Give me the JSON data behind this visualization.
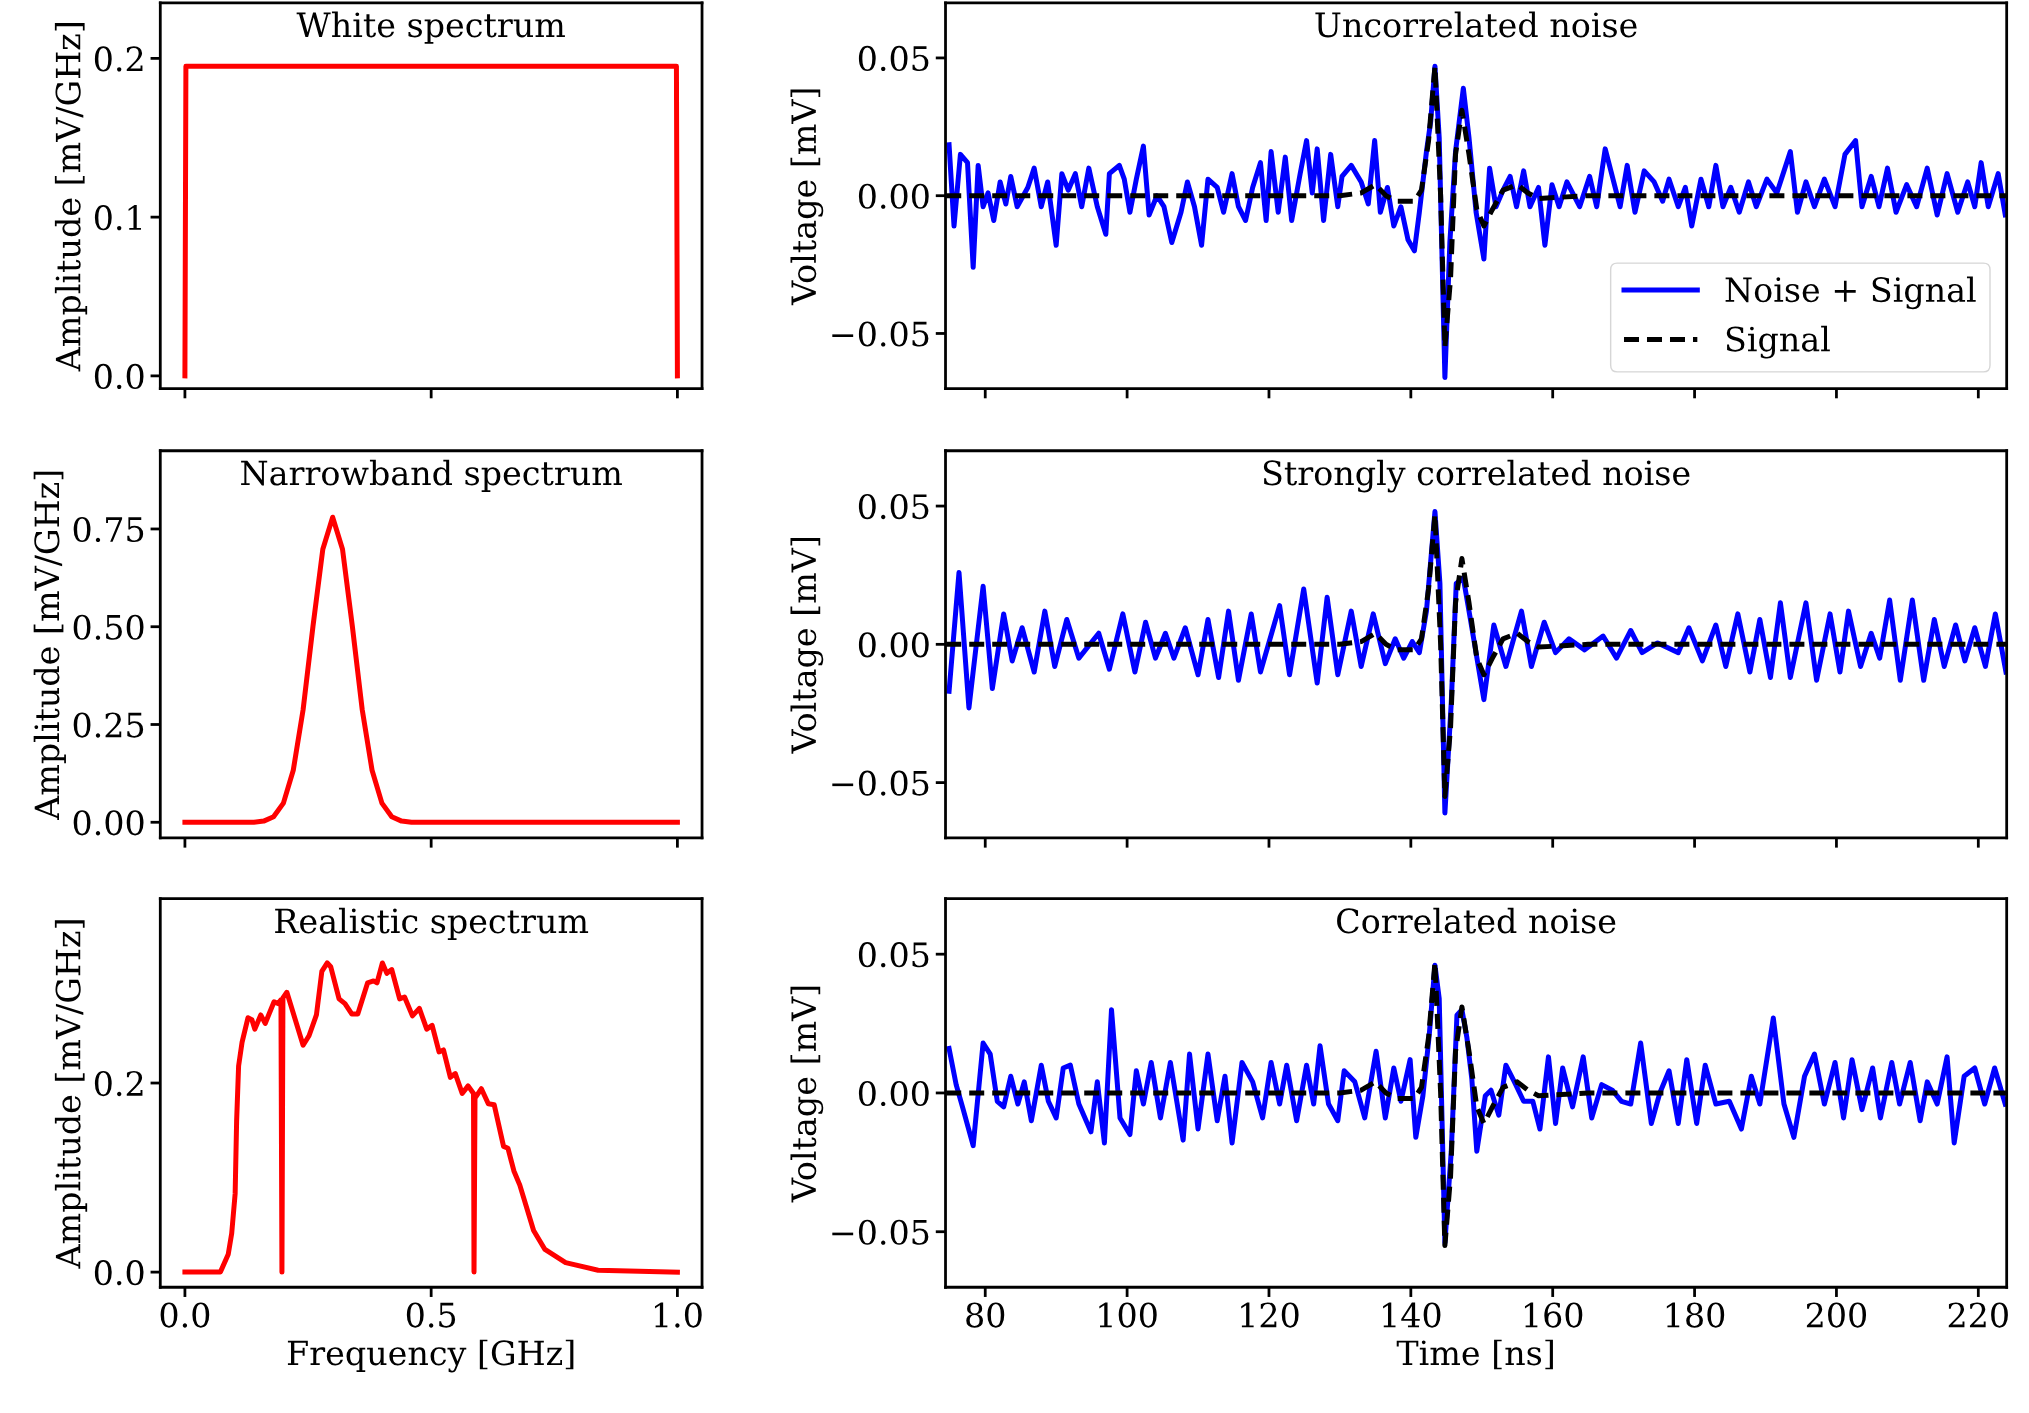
{
  "chart_data": [
    {
      "type": "line",
      "title": "White spectrum",
      "ylabel": "Amplitude [mV/GHz]",
      "xlim": [
        -0.05,
        1.05
      ],
      "ylim": [
        -0.008,
        0.235
      ],
      "xticks": [
        {
          "value": 0,
          "label": null
        },
        {
          "value": 0.5,
          "label": null
        },
        {
          "value": 1,
          "label": null
        }
      ],
      "yticks": [
        {
          "value": 0,
          "label": "0.0"
        },
        {
          "value": 0.1,
          "label": "0.1"
        },
        {
          "value": 0.2,
          "label": "0.2"
        }
      ],
      "tick_labels": "y",
      "grid": false,
      "legend": false,
      "series": [
        {
          "color": "#ff0000",
          "line_style": "solid",
          "x": [
            0,
            0.002,
            0.998,
            1
          ],
          "values": [
            0,
            0.195,
            0.195,
            0
          ]
        }
      ]
    },
    {
      "type": "line",
      "title": "Uncorrelated noise",
      "ylabel": "Voltage [mV]",
      "xlim": [
        74.4,
        224
      ],
      "ylim": [
        -0.07,
        0.07
      ],
      "xticks": [
        80,
        100,
        120,
        140,
        160,
        180,
        200,
        220
      ],
      "yticks": [
        {
          "value": -0.05,
          "label": "−0.05"
        },
        {
          "value": 0,
          "label": "0.00"
        },
        {
          "value": 0.05,
          "label": "0.05"
        }
      ],
      "tick_labels": "y",
      "grid": false,
      "legend": "bottom right",
      "series": [
        {
          "name": "Noise + Signal",
          "color": "#0000ff",
          "line_style": "solid",
          "x": [
            74.9,
            75.6,
            76.5,
            77.5,
            78.3,
            79.0,
            79.7,
            80.4,
            81.2,
            82.1,
            82.9,
            83.6,
            84.5,
            86.0,
            86.9,
            87.9,
            88.8,
            90.0,
            90.8,
            91.7,
            92.7,
            93.6,
            94.6,
            95.8,
            97.0,
            97.5,
            98.9,
            99.6,
            100.4,
            101.3,
            102.3,
            103.1,
            104.2,
            105.2,
            106.3,
            107.6,
            108.5,
            109.5,
            110.5,
            111.4,
            112.7,
            113.6,
            114.8,
            115.7,
            116.7,
            117.7,
            118.8,
            119.6,
            120.3,
            121.3,
            122.3,
            123.2,
            124.4,
            125.3,
            126.1,
            126.8,
            127.7,
            128.7,
            129.7,
            130.3,
            131.6,
            133.0,
            134.0,
            134.9,
            135.7,
            136.7,
            137.6,
            138.6,
            139.6,
            140.5,
            141.2,
            142.2,
            142.8,
            143.4,
            144.0,
            144.8,
            145.5,
            146.3,
            147.4,
            148.2,
            149.2,
            150.3,
            151.1,
            152.0,
            153.0,
            154.0,
            154.9,
            155.9,
            156.8,
            158.0,
            158.9,
            159.9,
            160.9,
            162.0,
            163.8,
            165.2,
            166.2,
            167.4,
            168.4,
            169.5,
            170.5,
            171.6,
            172.9,
            174.3,
            175.5,
            176.4,
            177.7,
            178.7,
            179.6,
            180.9,
            182.0,
            183.0,
            184.0,
            185.1,
            186.3,
            187.6,
            188.7,
            190.2,
            191.6,
            193.5,
            194.5,
            195.7,
            196.9,
            198.3,
            199.8,
            201.2,
            202.7,
            203.6,
            204.9,
            206.0,
            207.2,
            208.4,
            209.9,
            211.3,
            212.8,
            214.2,
            215.6,
            217.1,
            218.5,
            219.5,
            220.4,
            221.4,
            222.8,
            223.8
          ],
          "values": [
            0.0185,
            -0.011,
            0.015,
            0.012,
            -0.026,
            0.011,
            -0.004,
            0.001,
            -0.009,
            0.005,
            -0.003,
            0.007,
            -0.004,
            0.003,
            0.01,
            -0.004,
            0.005,
            -0.018,
            0.008,
            0.002,
            0.008,
            -0.004,
            0.01,
            -0.004,
            -0.014,
            0.008,
            0.011,
            0.006,
            -0.006,
            0.006,
            0.018,
            -0.007,
            0,
            -0.004,
            -0.017,
            -0.006,
            0.005,
            -0.004,
            -0.018,
            0.006,
            0.003,
            -0.006,
            0.008,
            -0.004,
            -0.009,
            0.003,
            0.012,
            -0.009,
            0.016,
            -0.006,
            0.014,
            -0.009,
            0.008,
            0.02,
            0.001,
            0.017,
            -0.009,
            0.015,
            -0.004,
            0.007,
            0.011,
            0.005,
            -0.003,
            0.02,
            -0.006,
            0.003,
            -0.011,
            -0.004,
            -0.016,
            -0.02,
            -0.006,
            0.016,
            0.027,
            0.047,
            0.021,
            -0.066,
            -0.017,
            0.016,
            0.039,
            0.021,
            -0.006,
            -0.023,
            0.01,
            -0.004,
            0.002,
            0.007,
            -0.004,
            0.009,
            -0.004,
            0.003,
            -0.018,
            0.004,
            -0.004,
            0.005,
            -0.004,
            0.007,
            -0.004,
            0.017,
            0.007,
            -0.004,
            0.011,
            -0.006,
            0.009,
            0.005,
            -0.002,
            0.006,
            -0.004,
            0.003,
            -0.011,
            0.006,
            -0.004,
            0.011,
            -0.004,
            0.003,
            -0.006,
            0.005,
            -0.004,
            0.006,
            0.001,
            0.016,
            -0.006,
            0.005,
            -0.004,
            0.006,
            -0.004,
            0.015,
            0.02,
            -0.004,
            0.007,
            -0.004,
            0.01,
            -0.006,
            0.004,
            -0.004,
            0.01,
            -0.007,
            0.008,
            -0.006,
            0.005,
            -0.004,
            0.012,
            -0.004,
            0.008,
            -0.007
          ]
        },
        {
          "name": "Signal",
          "color": "#000000",
          "line_style": "dashed",
          "x": [
            74.5,
            130,
            133,
            135,
            136.5,
            138,
            140.5,
            141.5,
            142.5,
            143.4,
            144.2,
            144.8,
            145.6,
            146.3,
            147.2,
            148.2,
            149.3,
            150.3,
            151.5,
            153,
            155,
            156.5,
            158,
            165,
            224
          ],
          "values": [
            0,
            0,
            0.001,
            0.004,
            0,
            -0.002,
            -0.002,
            0.002,
            0.02,
            0.047,
            0,
            -0.055,
            -0.03,
            0.015,
            0.031,
            0.015,
            -0.005,
            -0.011,
            -0.005,
            0.002,
            0.004,
            0.001,
            -0.001,
            0,
            0
          ]
        }
      ]
    },
    {
      "type": "line",
      "title": "Narrowband spectrum",
      "ylabel": "Amplitude [mV/GHz]",
      "xlim": [
        -0.05,
        1.05
      ],
      "ylim": [
        -0.04,
        0.95
      ],
      "xticks": [
        {
          "value": 0,
          "label": null
        },
        {
          "value": 0.5,
          "label": null
        },
        {
          "value": 1,
          "label": null
        }
      ],
      "yticks": [
        {
          "value": 0,
          "label": "0.00"
        },
        {
          "value": 0.25,
          "label": "0.25"
        },
        {
          "value": 0.5,
          "label": "0.50"
        },
        {
          "value": 0.75,
          "label": "0.75"
        }
      ],
      "tick_labels": "y",
      "grid": false,
      "legend": false,
      "series": [
        {
          "color": "#ff0000",
          "line_style": "solid",
          "x": [
            0,
            0.1,
            0.14,
            0.16,
            0.18,
            0.2,
            0.22,
            0.24,
            0.26,
            0.28,
            0.3,
            0.32,
            0.34,
            0.36,
            0.38,
            0.4,
            0.42,
            0.44,
            0.46,
            0.5,
            0.7,
            1.0
          ],
          "values": [
            0,
            0,
            0,
            0.003,
            0.014,
            0.049,
            0.133,
            0.288,
            0.501,
            0.698,
            0.78,
            0.698,
            0.501,
            0.288,
            0.133,
            0.049,
            0.014,
            0.003,
            0,
            0,
            0,
            0
          ]
        }
      ]
    },
    {
      "type": "line",
      "title": "Strongly correlated noise",
      "ylabel": "Voltage [mV]",
      "xlim": [
        74.4,
        224
      ],
      "ylim": [
        -0.07,
        0.07
      ],
      "xticks": [
        80,
        100,
        120,
        140,
        160,
        180,
        200,
        220
      ],
      "yticks": [
        {
          "value": -0.05,
          "label": "−0.05"
        },
        {
          "value": 0,
          "label": "0.00"
        },
        {
          "value": 0.05,
          "label": "0.05"
        }
      ],
      "tick_labels": "y",
      "grid": false,
      "legend": false,
      "series": [
        {
          "color": "#0000ff",
          "line_style": "solid",
          "x": [
            74.9,
            76.3,
            77.7,
            79.7,
            81.0,
            82.6,
            83.8,
            85.2,
            86.9,
            88.4,
            89.8,
            91.5,
            93.2,
            96.0,
            97.5,
            99.4,
            101.1,
            102.6,
            104.0,
            105.4,
            106.6,
            108.2,
            110.0,
            111.4,
            112.9,
            114.3,
            115.7,
            117.5,
            118.8,
            121.5,
            122.9,
            124.9,
            126.8,
            128.2,
            129.7,
            131.6,
            133.0,
            134.7,
            136.4,
            137.8,
            139.0,
            140.2,
            141.2,
            142.2,
            143.4,
            144.1,
            144.8,
            145.7,
            146.4,
            147.4,
            148.4,
            150.3,
            151.7,
            153.4,
            155.6,
            157.0,
            158.8,
            160.4,
            162.3,
            164.5,
            167.1,
            169.0,
            171.0,
            172.6,
            174.8,
            177.7,
            179.2,
            181.1,
            183.0,
            184.4,
            186.1,
            187.8,
            189.2,
            190.7,
            192.1,
            193.5,
            195.7,
            197.2,
            199.1,
            200.5,
            201.7,
            203.4,
            204.9,
            206.1,
            207.5,
            209.0,
            210.7,
            212.3,
            213.8,
            215.2,
            216.8,
            218.1,
            219.5,
            221.0,
            222.4,
            223.9
          ],
          "values": [
            -0.017,
            0.026,
            -0.023,
            0.021,
            -0.016,
            0.011,
            -0.006,
            0.006,
            -0.01,
            0.012,
            -0.008,
            0.009,
            -0.005,
            0.004,
            -0.009,
            0.011,
            -0.01,
            0.008,
            -0.005,
            0.004,
            -0.005,
            0.006,
            -0.011,
            0.009,
            -0.012,
            0.012,
            -0.013,
            0.011,
            -0.01,
            0.014,
            -0.011,
            0.02,
            -0.014,
            0.017,
            -0.011,
            0.012,
            -0.008,
            0.011,
            -0.007,
            0.002,
            -0.005,
            0.001,
            -0.003,
            0.012,
            0.048,
            0.022,
            -0.061,
            -0.021,
            0.022,
            0.024,
            0.009,
            -0.02,
            0.007,
            -0.008,
            0.012,
            -0.008,
            0.008,
            -0.003,
            0.002,
            -0.002,
            0.003,
            -0.005,
            0.005,
            -0.003,
            0.0005,
            -0.003,
            0.006,
            -0.006,
            0.007,
            -0.008,
            0.011,
            -0.01,
            0.009,
            -0.012,
            0.015,
            -0.012,
            0.015,
            -0.013,
            0.011,
            -0.01,
            0.012,
            -0.008,
            0.004,
            -0.005,
            0.016,
            -0.013,
            0.016,
            -0.013,
            0.009,
            -0.008,
            0.007,
            -0.006,
            0.006,
            -0.008,
            0.011,
            -0.01
          ]
        },
        {
          "color": "#000000",
          "line_style": "dashed",
          "x": [
            74.5,
            130,
            133,
            135,
            136.5,
            138,
            140.5,
            141.5,
            142.5,
            143.4,
            144.2,
            144.8,
            145.6,
            146.3,
            147.2,
            148.2,
            149.3,
            150.3,
            151.5,
            153,
            155,
            156.5,
            158,
            165,
            224
          ],
          "values": [
            0,
            0,
            0.001,
            0.004,
            0,
            -0.002,
            -0.002,
            0.002,
            0.02,
            0.047,
            0,
            -0.055,
            -0.03,
            0.015,
            0.031,
            0.015,
            -0.005,
            -0.011,
            -0.005,
            0.002,
            0.004,
            0.001,
            -0.001,
            0,
            0
          ]
        }
      ]
    },
    {
      "type": "line",
      "title": "Realistic spectrum",
      "xlabel": "Frequency [GHz]",
      "ylabel": "Amplitude [mV/GHz]",
      "xlim": [
        -0.05,
        1.05
      ],
      "ylim": [
        -0.016,
        0.395
      ],
      "xticks": [
        {
          "value": 0,
          "label": "0.0"
        },
        {
          "value": 0.5,
          "label": "0.5"
        },
        {
          "value": 1,
          "label": "1.0"
        }
      ],
      "yticks": [
        {
          "value": 0,
          "label": "0.0"
        },
        {
          "value": 0.2,
          "label": "0.2"
        }
      ],
      "grid": false,
      "legend": false,
      "series": [
        {
          "color": "#ff0000",
          "line_style": "solid",
          "x": [
            0,
            0.072,
            0.088,
            0.095,
            0.102,
            0.105,
            0.109,
            0.116,
            0.128,
            0.136,
            0.142,
            0.154,
            0.163,
            0.181,
            0.189,
            0.195,
            0.197,
            0.199,
            0.207,
            0.24,
            0.252,
            0.267,
            0.278,
            0.289,
            0.296,
            0.313,
            0.325,
            0.339,
            0.351,
            0.371,
            0.383,
            0.39,
            0.401,
            0.41,
            0.42,
            0.436,
            0.446,
            0.462,
            0.476,
            0.491,
            0.502,
            0.516,
            0.525,
            0.539,
            0.549,
            0.563,
            0.575,
            0.586,
            0.587,
            0.589,
            0.602,
            0.616,
            0.628,
            0.647,
            0.656,
            0.668,
            0.68,
            0.708,
            0.731,
            0.773,
            0.839,
            1.0
          ],
          "values": [
            0,
            0,
            0.019,
            0.041,
            0.083,
            0.16,
            0.218,
            0.243,
            0.269,
            0.267,
            0.257,
            0.272,
            0.263,
            0.286,
            0.284,
            0.288,
            0,
            0.29,
            0.296,
            0.24,
            0.25,
            0.272,
            0.318,
            0.327,
            0.323,
            0.289,
            0.284,
            0.273,
            0.273,
            0.306,
            0.308,
            0.306,
            0.327,
            0.316,
            0.32,
            0.289,
            0.291,
            0.271,
            0.279,
            0.257,
            0.261,
            0.233,
            0.235,
            0.206,
            0.21,
            0.189,
            0.197,
            0.189,
            0,
            0.184,
            0.194,
            0.178,
            0.177,
            0.133,
            0.131,
            0.107,
            0.092,
            0.044,
            0.024,
            0.01,
            0.002,
            0
          ]
        }
      ]
    },
    {
      "type": "line",
      "title": "Correlated noise",
      "xlabel": "Time [ns]",
      "ylabel": "Voltage [mV]",
      "xlim": [
        74.4,
        224
      ],
      "ylim": [
        -0.07,
        0.07
      ],
      "xticks": [
        80,
        100,
        120,
        140,
        160,
        180,
        200,
        220
      ],
      "yticks": [
        {
          "value": -0.05,
          "label": "−0.05"
        },
        {
          "value": 0,
          "label": "0.00"
        },
        {
          "value": 0.05,
          "label": "0.05"
        }
      ],
      "grid": false,
      "legend": false,
      "series": [
        {
          "color": "#0000ff",
          "line_style": "solid",
          "x": [
            74.9,
            75.9,
            76.9,
            78.3,
            79.7,
            80.7,
            81.7,
            82.6,
            83.6,
            84.6,
            85.5,
            86.5,
            87.9,
            88.9,
            90.0,
            91.0,
            92.0,
            93.2,
            94.9,
            95.8,
            96.8,
            97.8,
            99.0,
            100.4,
            101.3,
            102.3,
            103.4,
            104.7,
            106.1,
            107.9,
            108.8,
            110.0,
            111.4,
            112.7,
            113.8,
            114.8,
            116.2,
            117.7,
            119.1,
            120.3,
            121.5,
            122.5,
            123.9,
            125.3,
            126.3,
            127.2,
            128.4,
            129.7,
            130.6,
            132.1,
            133.5,
            135.1,
            136.4,
            137.6,
            138.6,
            139.9,
            140.7,
            141.7,
            142.6,
            143.4,
            144.0,
            144.8,
            145.7,
            146.5,
            147.2,
            147.9,
            148.6,
            149.3,
            150.5,
            151.3,
            152.4,
            153.4,
            154.6,
            155.9,
            157.2,
            158.2,
            159.4,
            160.4,
            161.4,
            162.8,
            164.3,
            165.5,
            166.9,
            168.4,
            169.7,
            171.0,
            172.4,
            173.9,
            175.1,
            176.4,
            177.7,
            178.9,
            180.3,
            181.5,
            183.0,
            184.9,
            186.6,
            188.0,
            189.2,
            191.1,
            192.6,
            194.0,
            195.5,
            196.9,
            198.3,
            199.8,
            201.0,
            202.2,
            203.6,
            205.1,
            206.2,
            207.8,
            208.9,
            210.4,
            211.8,
            212.8,
            214.2,
            215.6,
            216.6,
            218.0,
            219.5,
            220.9,
            222.3,
            223.8
          ],
          "values": [
            0.016,
            0.003,
            -0.006,
            -0.019,
            0.018,
            0.014,
            -0.003,
            -0.005,
            0.006,
            -0.004,
            0.004,
            -0.01,
            0.01,
            -0.003,
            -0.009,
            0.009,
            0.01,
            -0.004,
            -0.014,
            0.004,
            -0.018,
            0.03,
            -0.009,
            -0.015,
            0.008,
            -0.004,
            0.011,
            -0.009,
            0.011,
            -0.017,
            0.014,
            -0.013,
            0.014,
            -0.01,
            0.006,
            -0.018,
            0.011,
            0.004,
            -0.009,
            0.011,
            -0.004,
            0.01,
            -0.01,
            0.01,
            -0.004,
            0.017,
            -0.004,
            -0.01,
            0.008,
            0.004,
            -0.009,
            0.015,
            -0.009,
            0.009,
            -0.003,
            0.012,
            -0.016,
            -0.001,
            0.021,
            0.046,
            0.034,
            -0.054,
            -0.021,
            0.028,
            0.03,
            0.02,
            0.005,
            -0.021,
            -0.001,
            0.001,
            -0.008,
            0.01,
            0.004,
            -0.003,
            -0.003,
            -0.013,
            0.013,
            -0.011,
            0.009,
            -0.005,
            0.013,
            -0.009,
            0.003,
            0.001,
            -0.003,
            -0.004,
            0.018,
            -0.011,
            0,
            0.008,
            -0.011,
            0.012,
            -0.011,
            0.01,
            -0.004,
            -0.003,
            -0.013,
            0.006,
            -0.004,
            0.027,
            -0.004,
            -0.016,
            0.006,
            0.014,
            -0.004,
            0.011,
            -0.009,
            0.012,
            -0.006,
            0.009,
            -0.009,
            0.011,
            -0.004,
            0.011,
            -0.01,
            0.004,
            -0.004,
            0.013,
            -0.018,
            0.006,
            0.009,
            -0.004,
            0.009,
            -0.004
          ]
        },
        {
          "color": "#000000",
          "line_style": "dashed",
          "x": [
            74.5,
            130,
            133,
            135,
            136.5,
            138,
            140.5,
            141.5,
            142.5,
            143.4,
            144.2,
            144.8,
            145.6,
            146.3,
            147.2,
            148.2,
            149.3,
            150.3,
            151.5,
            153,
            155,
            156.5,
            158,
            165,
            224
          ],
          "values": [
            0,
            0,
            0.001,
            0.004,
            0,
            -0.002,
            -0.002,
            0.002,
            0.02,
            0.047,
            0,
            -0.055,
            -0.03,
            0.015,
            0.031,
            0.015,
            -0.005,
            -0.011,
            -0.005,
            0.002,
            0.004,
            0.001,
            -0.001,
            0,
            0
          ]
        }
      ]
    }
  ]
}
